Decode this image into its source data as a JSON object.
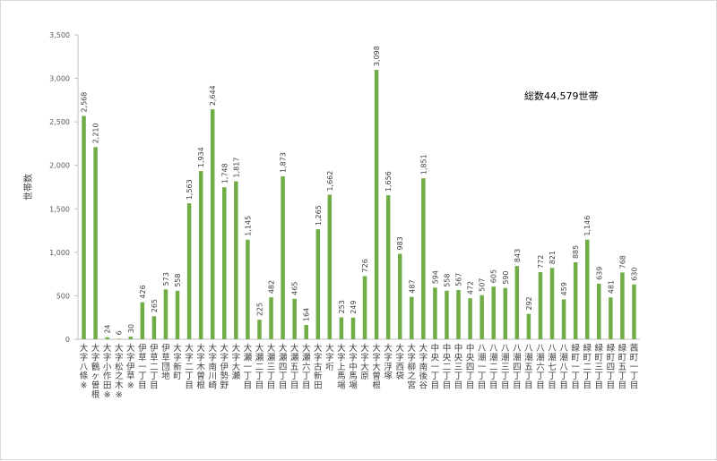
{
  "chart_data": {
    "type": "bar",
    "title": "",
    "ylabel": "世帯数",
    "xlabel": "",
    "ylim": [
      0,
      3500
    ],
    "ytick_step": 500,
    "grid": false,
    "legend": "none",
    "bar_color": "#70ad47",
    "annotation": "総数44,579世帯",
    "categories": [
      "大字八條※",
      "大字鶴ヶ曽根",
      "大字小作田※",
      "大字松之木※",
      "大字伊草※",
      "伊草一丁目",
      "伊草二丁目",
      "伊草団地",
      "大字新町",
      "大字二丁目",
      "大字木曽根",
      "大字南川崎",
      "大字伊勢野",
      "大字大瀬",
      "大瀬一丁目",
      "大瀬二丁目",
      "大瀬三丁目",
      "大瀬四丁目",
      "大瀬五丁目",
      "大瀬六丁目",
      "大字古新田",
      "大字垳",
      "大字上馬場",
      "大字中馬場",
      "大字大原",
      "大字大曽根",
      "大字浮塚",
      "大字西袋",
      "大字柳之宮",
      "大字南後谷",
      "中央一丁目",
      "中央二丁目",
      "中央三丁目",
      "中央四丁目",
      "八潮一丁目",
      "八潮二丁目",
      "八潮三丁目",
      "八潮四丁目",
      "八潮五丁目",
      "八潮六丁目",
      "八潮七丁目",
      "八潮八丁目",
      "緑町一丁目",
      "緑町二丁目",
      "緑町三丁目",
      "緑町四丁目",
      "緑町五丁目",
      "茜町一丁目"
    ],
    "values": [
      2568,
      2210,
      24,
      6,
      30,
      426,
      265,
      573,
      558,
      1563,
      1934,
      2644,
      1748,
      1817,
      1145,
      225,
      482,
      1873,
      465,
      164,
      1265,
      1662,
      253,
      249,
      726,
      3098,
      1656,
      983,
      487,
      1851,
      594,
      558,
      567,
      472,
      507,
      605,
      590,
      843,
      292,
      772,
      821,
      459,
      885,
      1146,
      639,
      481,
      768,
      630
    ],
    "value_labels": [
      "2,568",
      "2,210",
      "24",
      "6",
      "30",
      "426",
      "265",
      "573",
      "558",
      "1,563",
      "1,934",
      "2,644",
      "1,748",
      "1,817",
      "1,145",
      "225",
      "482",
      "1,873",
      "465",
      "164",
      "1,265",
      "1,662",
      "253",
      "249",
      "726",
      "3,098",
      "1,656",
      "983",
      "487",
      "1,851",
      "594",
      "558",
      "567",
      "472",
      "507",
      "605",
      "590",
      "843",
      "292",
      "772",
      "821",
      "459",
      "885",
      "1,146",
      "639",
      "481",
      "768",
      "630"
    ],
    "ytick_labels": [
      "0",
      "500",
      "1,000",
      "1,500",
      "2,000",
      "2,500",
      "3,000",
      "3,500"
    ]
  }
}
